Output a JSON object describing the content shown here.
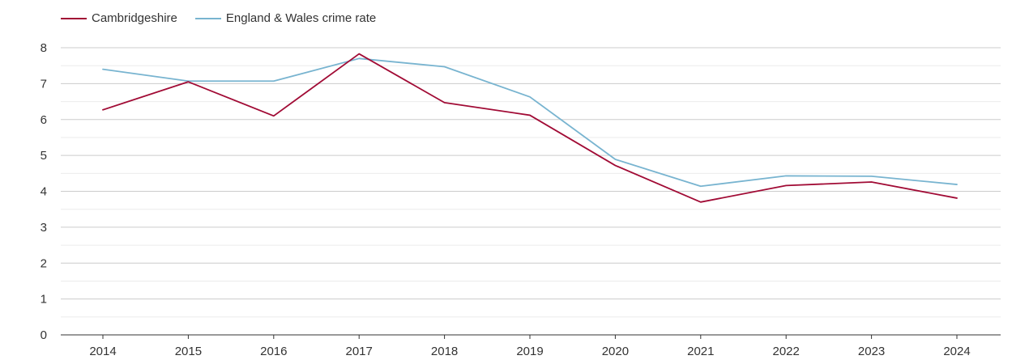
{
  "chart_data": {
    "type": "line",
    "title": "",
    "xlabel": "",
    "ylabel": "",
    "categories": [
      "2014",
      "2015",
      "2016",
      "2017",
      "2018",
      "2019",
      "2020",
      "2021",
      "2022",
      "2023",
      "2024"
    ],
    "ylim": [
      0,
      8
    ],
    "yticks": [
      "0",
      "1",
      "2",
      "3",
      "4",
      "5",
      "6",
      "7",
      "8"
    ],
    "grid": true,
    "legend_position": "top-left",
    "series": [
      {
        "name": "Cambridgeshire",
        "color": "#a10b35",
        "values": [
          6.27,
          7.05,
          6.1,
          7.83,
          6.47,
          6.12,
          4.72,
          3.7,
          4.16,
          4.26,
          3.81
        ]
      },
      {
        "name": "England & Wales crime rate",
        "color": "#78b4d0",
        "values": [
          7.4,
          7.07,
          7.07,
          7.7,
          7.47,
          6.63,
          4.89,
          4.14,
          4.43,
          4.42,
          4.19
        ]
      }
    ]
  }
}
